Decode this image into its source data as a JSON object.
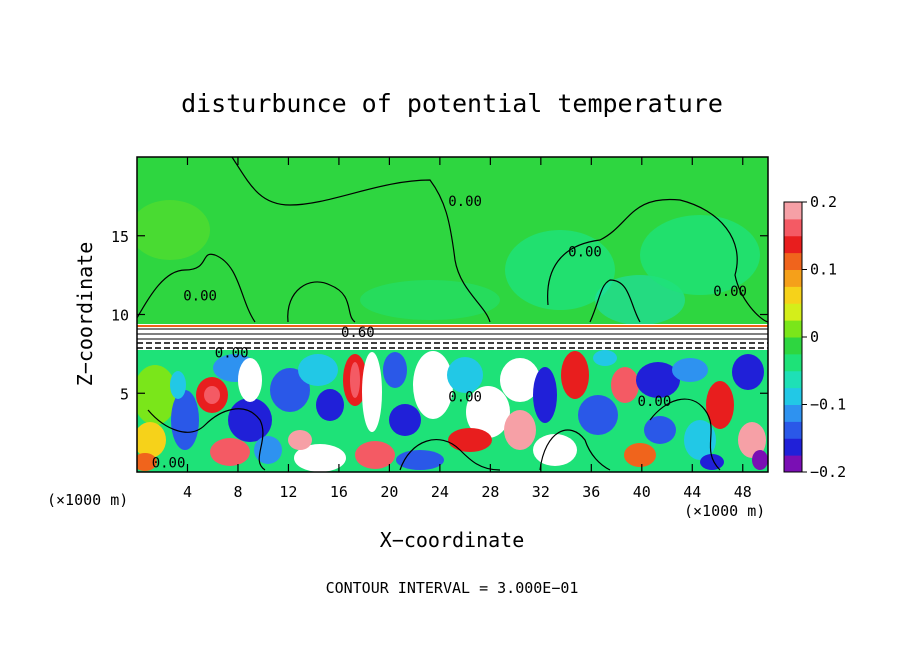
{
  "chart_data": {
    "type": "heatmap",
    "title": "disturbunce of potential temperature",
    "xlabel": "X−coordinate",
    "ylabel": "Z−coordinate",
    "x_unit_label": "(×1000 m)",
    "z_unit_label": "(×1000 m)",
    "footer": "CONTOUR INTERVAL = 3.000E−01",
    "xlim": [
      0,
      50
    ],
    "ylim": [
      0,
      20
    ],
    "x_ticks": [
      "4",
      "8",
      "12",
      "16",
      "20",
      "24",
      "28",
      "32",
      "36",
      "40",
      "44",
      "48"
    ],
    "y_ticks": [
      "5",
      "10",
      "15"
    ],
    "colorbar": {
      "range": [
        -0.2,
        0.2
      ],
      "tick_labels": [
        "0.2",
        "0.1",
        "0",
        "−0.1",
        "−0.2"
      ],
      "colors": [
        "#7a0fb4",
        "#2020d8",
        "#2a58e8",
        "#2e92f0",
        "#22c8e6",
        "#1ee0b6",
        "#1ee278",
        "#2ed640",
        "#7ae61a",
        "#d4ee1a",
        "#f6d21a",
        "#f5a01a",
        "#f0641c",
        "#e81e1e",
        "#f45a64",
        "#f6a0a6"
      ]
    },
    "contour_labels": [
      {
        "text": "0.00",
        "x": 26,
        "z": 17.2
      },
      {
        "text": "0.00",
        "x": 35.5,
        "z": 14
      },
      {
        "text": "0.00",
        "x": 47,
        "z": 11.5
      },
      {
        "text": "0.00",
        "x": 5,
        "z": 11.2
      },
      {
        "text": "0.60",
        "x": 17.5,
        "z": 8.9
      },
      {
        "text": "0.00",
        "x": 7.5,
        "z": 7.6
      },
      {
        "text": "0.00",
        "x": 26,
        "z": 4.8
      },
      {
        "text": "0.00",
        "x": 41,
        "z": 4.5
      },
      {
        "text": "0.00",
        "x": 2.5,
        "z": 0.6
      }
    ]
  }
}
